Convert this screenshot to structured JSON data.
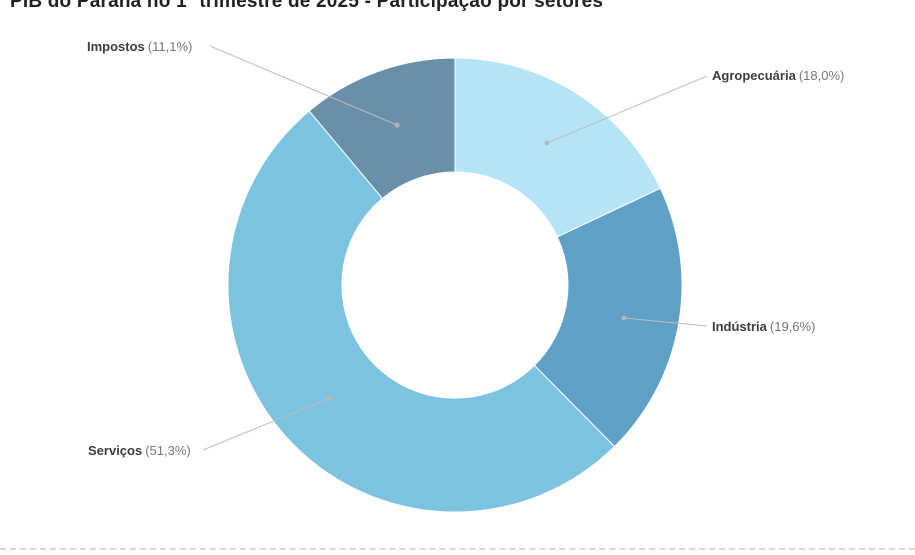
{
  "header": {
    "title": "PIB do Paraná no 1º trimestre de 2025 - Participação por setores"
  },
  "chart_data": {
    "type": "pie",
    "subtype": "donut",
    "title": "PIB do Paraná no 1º trimestre de 2025 - Participação por setores",
    "unit": "%",
    "start_angle_deg": 0,
    "direction": "clockwise",
    "legend": "none",
    "slices": [
      {
        "id": "agropecuaria",
        "label": "Agropecuária",
        "value": 18.0,
        "pct_label": "(18,0%)",
        "color": "#b5e4f9"
      },
      {
        "id": "industria",
        "label": "Indústria",
        "value": 19.6,
        "pct_label": "(19,6%)",
        "color": "#5fa0c6"
      },
      {
        "id": "servicos",
        "label": "Serviços",
        "value": 51.3,
        "pct_label": "(51,3%)",
        "color": "#7cc3e0"
      },
      {
        "id": "impostos",
        "label": "Impostos",
        "value": 11.1,
        "pct_label": "(11,1%)",
        "color": "#6a90a9"
      }
    ]
  }
}
